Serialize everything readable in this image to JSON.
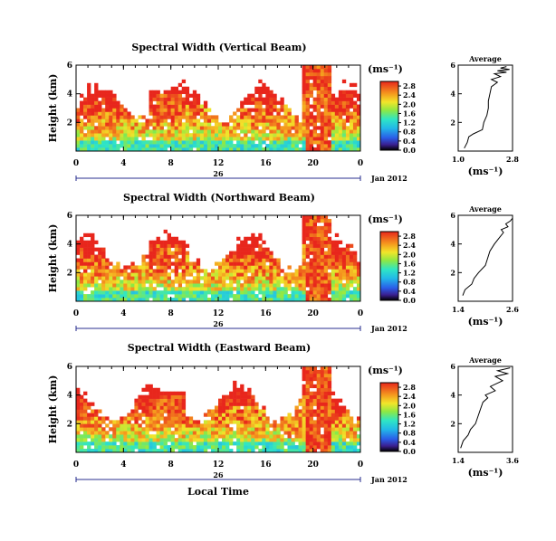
{
  "figure": {
    "xlabel": "Local Time",
    "date_tick": "26",
    "date_label": "Jan 2012",
    "unit_label": "(ms⁻¹)",
    "avg_title": "Average",
    "ylabel": "Height (km)"
  },
  "chart_data": [
    {
      "type": "heatmap",
      "title": "Spectral Width (Vertical Beam)",
      "xlabel": "Local Time",
      "ylabel": "Height (km)",
      "x_ticks": [
        "0",
        "4",
        "8",
        "12",
        "16",
        "20",
        "0"
      ],
      "y_ticks": [
        "2",
        "4",
        "6"
      ],
      "xlim": [
        0,
        24
      ],
      "ylim": [
        0,
        6
      ],
      "colorbar": {
        "label": "(ms⁻¹)",
        "ticks": [
          "0.0",
          "0.4",
          "0.8",
          "1.2",
          "1.6",
          "2.0",
          "2.4",
          "2.8"
        ],
        "range": [
          0,
          3.0
        ]
      },
      "profile": {
        "title": "Average",
        "xlabel": "(ms⁻¹)",
        "x_ticks": [
          "1.0",
          "2.8"
        ],
        "xlim": [
          1.0,
          2.8
        ],
        "y_ticks": [
          "2",
          "4",
          "6"
        ],
        "height": [
          0.2,
          0.6,
          1.0,
          1.2,
          1.5,
          2.0,
          2.5,
          3.0,
          3.5,
          4.0,
          4.5,
          4.8,
          5.0,
          5.2,
          5.4,
          5.5,
          5.6,
          5.7,
          5.8,
          5.9
        ],
        "value": [
          1.2,
          1.3,
          1.35,
          1.5,
          1.8,
          1.85,
          1.95,
          2.0,
          2.0,
          2.05,
          2.1,
          2.3,
          2.1,
          2.4,
          2.2,
          2.6,
          2.3,
          2.7,
          2.4,
          2.6
        ]
      }
    },
    {
      "type": "heatmap",
      "title": "Spectral Width (Northward Beam)",
      "xlabel": "Local Time",
      "ylabel": "Height (km)",
      "x_ticks": [
        "0",
        "4",
        "8",
        "12",
        "16",
        "20",
        "0"
      ],
      "y_ticks": [
        "2",
        "4",
        "6"
      ],
      "xlim": [
        0,
        24
      ],
      "ylim": [
        0,
        6
      ],
      "colorbar": {
        "label": "(ms⁻¹)",
        "ticks": [
          "0.0",
          "0.4",
          "0.8",
          "1.2",
          "1.6",
          "2.0",
          "2.4",
          "2.8"
        ],
        "range": [
          0,
          3.0
        ]
      },
      "profile": {
        "title": "Average",
        "xlabel": "(ms⁻¹)",
        "x_ticks": [
          "1.4",
          "2.6"
        ],
        "xlim": [
          1.4,
          2.6
        ],
        "y_ticks": [
          "2",
          "4",
          "6"
        ],
        "height": [
          0.4,
          0.8,
          1.2,
          1.6,
          2.0,
          2.5,
          3.0,
          3.5,
          4.0,
          4.4,
          4.8,
          5.0,
          5.2,
          5.4,
          5.6,
          5.8
        ],
        "value": [
          1.5,
          1.55,
          1.7,
          1.75,
          1.85,
          2.0,
          2.05,
          2.1,
          2.2,
          2.3,
          2.4,
          2.35,
          2.5,
          2.45,
          2.55,
          2.6
        ]
      }
    },
    {
      "type": "heatmap",
      "title": "Spectral Width (Eastward Beam)",
      "xlabel": "Local Time",
      "ylabel": "Height (km)",
      "x_ticks": [
        "0",
        "4",
        "8",
        "12",
        "16",
        "20",
        "0"
      ],
      "y_ticks": [
        "2",
        "4",
        "6"
      ],
      "xlim": [
        0,
        24
      ],
      "ylim": [
        0,
        6
      ],
      "colorbar": {
        "label": "(ms⁻¹)",
        "ticks": [
          "0.0",
          "0.4",
          "0.8",
          "1.2",
          "1.6",
          "2.0",
          "2.4",
          "2.8"
        ],
        "range": [
          0,
          3.0
        ]
      },
      "profile": {
        "title": "Average",
        "xlabel": "(ms⁻¹)",
        "x_ticks": [
          "1.4",
          "3.6"
        ],
        "xlim": [
          1.4,
          3.6
        ],
        "y_ticks": [
          "2",
          "4",
          "6"
        ],
        "height": [
          0.3,
          0.8,
          1.2,
          1.6,
          2.0,
          2.5,
          3.0,
          3.5,
          3.8,
          4.0,
          4.3,
          4.6,
          5.0,
          5.3,
          5.5,
          5.7,
          5.9
        ],
        "value": [
          1.5,
          1.6,
          1.8,
          1.9,
          2.1,
          2.2,
          2.3,
          2.4,
          2.6,
          2.5,
          2.9,
          2.7,
          3.2,
          2.9,
          3.4,
          3.0,
          3.5
        ]
      }
    }
  ]
}
